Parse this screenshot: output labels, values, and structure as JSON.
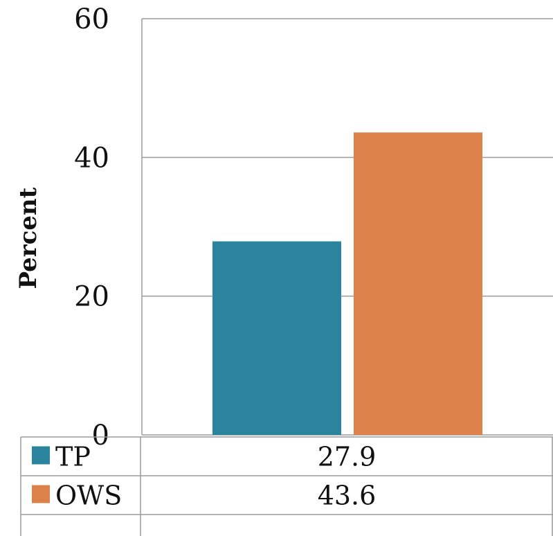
{
  "chart_data": {
    "type": "bar",
    "categories": [
      ""
    ],
    "series": [
      {
        "name": "TP",
        "values": [
          27.9
        ],
        "color": "#2b849e"
      },
      {
        "name": "OWS",
        "values": [
          43.6
        ],
        "color": "#dc814a"
      }
    ],
    "xlabel": "",
    "ylabel": "Percent",
    "ylim": [
      0,
      60
    ],
    "yticks": [
      "0",
      "20",
      "40",
      "60"
    ],
    "grid": true,
    "legend": "data-table-below",
    "table_values": [
      "27.9",
      "43.6"
    ]
  }
}
